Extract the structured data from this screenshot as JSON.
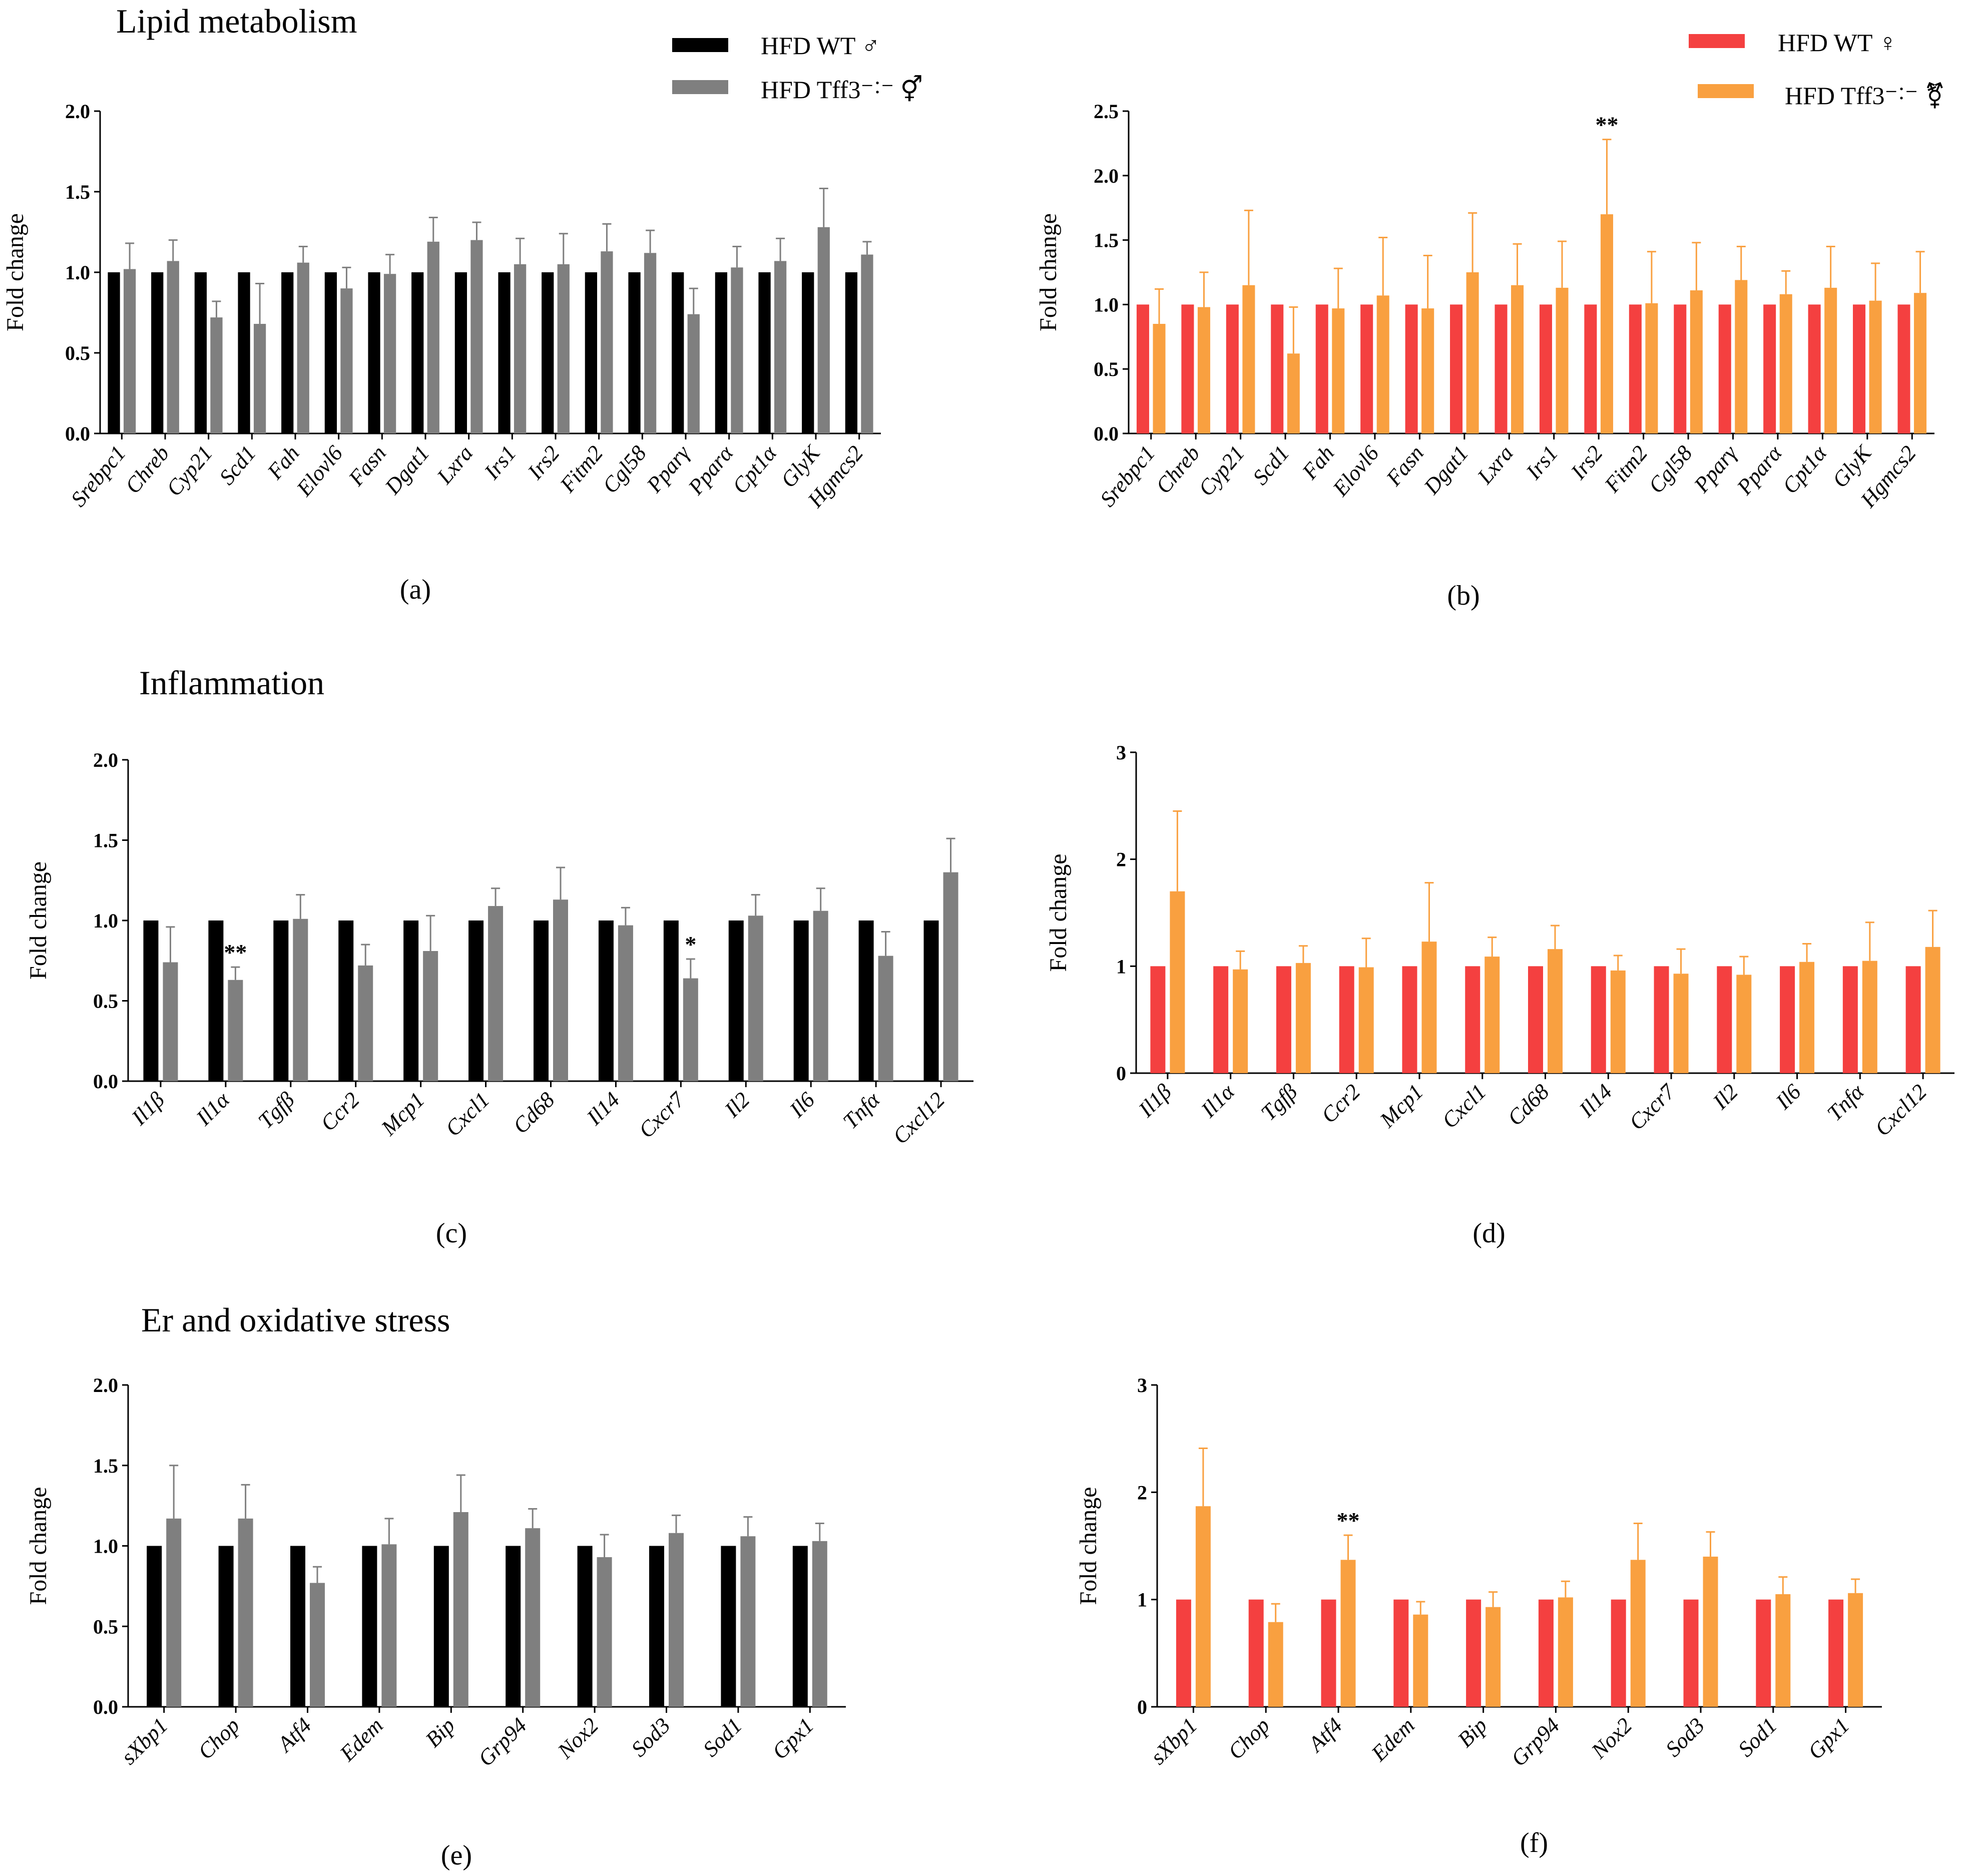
{
  "sections": {
    "lipid": "Lipid metabolism",
    "inflammation": "Inflammation",
    "er": "Er and oxidative stress"
  },
  "legend": {
    "male": [
      {
        "label": "HFD WT ♂",
        "color": "#000000"
      },
      {
        "label": "HFD Tff3⁻˸⁻ ⚥",
        "color": "#7f7f7f"
      }
    ],
    "female": [
      {
        "label": "HFD WT ♀",
        "color": "#f44040"
      },
      {
        "label": "HFD Tff3⁻˸⁻ ⚧",
        "color": "#f9a040"
      }
    ]
  },
  "colors": {
    "male_wt": "#000000",
    "male_ko": "#7f7f7f",
    "female_wt": "#f44040",
    "female_ko": "#f9a040"
  },
  "chart_data": [
    {
      "panel": "(a)",
      "type": "bar",
      "ylabel": "Fold change",
      "ylim": [
        0,
        2.0
      ],
      "yticks": [
        "0.0",
        "0.5",
        "1.0",
        "1.5",
        "2.0"
      ],
      "categories": [
        "Srebpc1",
        "Chreb",
        "Cyp21",
        "Scd1",
        "Fah",
        "Elovl6",
        "Fasn",
        "Dgat1",
        "Lxra",
        "Irs1",
        "Irs2",
        "Fitm2",
        "Cgl58",
        "Pparγ",
        "Pparα",
        "Cpt1α",
        "GlyK",
        "Hgmcs2"
      ],
      "series": [
        {
          "name": "HFD WT ♂",
          "values": [
            1,
            1,
            1,
            1,
            1,
            1,
            1,
            1,
            1,
            1,
            1,
            1,
            1,
            1,
            1,
            1,
            1,
            1
          ],
          "errors": [
            0,
            0,
            0,
            0,
            0,
            0,
            0,
            0,
            0,
            0,
            0,
            0,
            0,
            0,
            0,
            0,
            0,
            0
          ]
        },
        {
          "name": "HFD Tff3-/- ♂",
          "values": [
            1.02,
            1.07,
            0.72,
            0.68,
            1.06,
            0.9,
            0.99,
            1.19,
            1.2,
            1.05,
            1.05,
            1.13,
            1.12,
            0.74,
            1.03,
            1.07,
            1.28,
            1.11
          ],
          "errors": [
            0.16,
            0.13,
            0.1,
            0.25,
            0.1,
            0.13,
            0.12,
            0.15,
            0.11,
            0.16,
            0.19,
            0.17,
            0.14,
            0.16,
            0.13,
            0.14,
            0.24,
            0.08
          ]
        }
      ],
      "significance": []
    },
    {
      "panel": "(b)",
      "type": "bar",
      "ylabel": "Fold change",
      "ylim": [
        0,
        2.5
      ],
      "yticks": [
        "0.0",
        "0.5",
        "1.0",
        "1.5",
        "2.0",
        "2.5"
      ],
      "categories": [
        "Srebpc1",
        "Chreb",
        "Cyp21",
        "Scd1",
        "Fah",
        "Elovl6",
        "Fasn",
        "Dgat1",
        "Lxra",
        "Irs1",
        "Irs2",
        "Fitm2",
        "Cgl58",
        "Pparγ",
        "Pparα",
        "Cpt1α",
        "GlyK",
        "Hgmcs2"
      ],
      "series": [
        {
          "name": "HFD WT ♀",
          "values": [
            1,
            1,
            1,
            1,
            1,
            1,
            1,
            1,
            1,
            1,
            1,
            1,
            1,
            1,
            1,
            1,
            1,
            1
          ],
          "errors": [
            0,
            0,
            0,
            0,
            0,
            0,
            0,
            0,
            0,
            0,
            0,
            0,
            0,
            0,
            0,
            0,
            0,
            0
          ]
        },
        {
          "name": "HFD Tff3-/- ♀",
          "values": [
            0.85,
            0.98,
            1.15,
            0.62,
            0.97,
            1.07,
            0.97,
            1.25,
            1.15,
            1.13,
            1.7,
            1.01,
            1.11,
            1.19,
            1.08,
            1.13,
            1.03,
            1.09
          ],
          "errors": [
            0.27,
            0.27,
            0.58,
            0.36,
            0.31,
            0.45,
            0.41,
            0.46,
            0.32,
            0.36,
            0.58,
            0.4,
            0.37,
            0.26,
            0.18,
            0.32,
            0.29,
            0.32
          ]
        }
      ],
      "significance": [
        {
          "category": "Irs2",
          "text": "**"
        }
      ]
    },
    {
      "panel": "(c)",
      "type": "bar",
      "ylabel": "Fold change",
      "ylim": [
        0,
        2.0
      ],
      "yticks": [
        "0.0",
        "0.5",
        "1.0",
        "1.5",
        "2.0"
      ],
      "categories": [
        "Il1β",
        "Il1α",
        "Tgfβ",
        "Ccr2",
        "Mcp1",
        "Cxcl1",
        "Cd68",
        "Il14",
        "Cxcr7",
        "Il2",
        "Il6",
        "Tnfα",
        "Cxcl12"
      ],
      "series": [
        {
          "name": "HFD WT ♂",
          "values": [
            1,
            1,
            1,
            1,
            1,
            1,
            1,
            1,
            1,
            1,
            1,
            1,
            1
          ],
          "errors": [
            0,
            0,
            0,
            0,
            0,
            0,
            0,
            0,
            0,
            0,
            0,
            0,
            0
          ]
        },
        {
          "name": "HFD Tff3-/- ♂",
          "values": [
            0.74,
            0.63,
            1.01,
            0.72,
            0.81,
            1.09,
            1.13,
            0.97,
            0.64,
            1.03,
            1.06,
            0.78,
            1.3
          ],
          "errors": [
            0.22,
            0.08,
            0.15,
            0.13,
            0.22,
            0.11,
            0.2,
            0.11,
            0.12,
            0.13,
            0.14,
            0.15,
            0.21
          ]
        }
      ],
      "significance": [
        {
          "category": "Il1α",
          "text": "**"
        },
        {
          "category": "Cxcr7",
          "text": "*"
        }
      ]
    },
    {
      "panel": "(d)",
      "type": "bar",
      "ylabel": "Fold change",
      "ylim": [
        0,
        3
      ],
      "yticks": [
        "0",
        "1",
        "2",
        "3"
      ],
      "categories": [
        "Il1β",
        "Il1α",
        "Tgfβ",
        "Ccr2",
        "Mcp1",
        "Cxcl1",
        "Cd68",
        "Il14",
        "Cxcr7",
        "Il2",
        "Il6",
        "Tnfα",
        "Cxcl12"
      ],
      "series": [
        {
          "name": "HFD WT ♀",
          "values": [
            1,
            1,
            1,
            1,
            1,
            1,
            1,
            1,
            1,
            1,
            1,
            1,
            1
          ],
          "errors": [
            0,
            0,
            0,
            0,
            0,
            0,
            0,
            0,
            0,
            0,
            0,
            0,
            0
          ]
        },
        {
          "name": "HFD Tff3-/- ♀",
          "values": [
            1.7,
            0.97,
            1.03,
            0.99,
            1.23,
            1.09,
            1.16,
            0.96,
            0.93,
            0.92,
            1.04,
            1.05,
            1.18
          ],
          "errors": [
            0.75,
            0.17,
            0.16,
            0.27,
            0.55,
            0.18,
            0.22,
            0.14,
            0.23,
            0.17,
            0.17,
            0.36,
            0.34
          ]
        }
      ],
      "significance": []
    },
    {
      "panel": "(e)",
      "type": "bar",
      "ylabel": "Fold change",
      "ylim": [
        0,
        2.0
      ],
      "yticks": [
        "0.0",
        "0.5",
        "1.0",
        "1.5",
        "2.0"
      ],
      "categories": [
        "sXbp1",
        "Chop",
        "Atf4",
        "Edem",
        "Bip",
        "Grp94",
        "Nox2",
        "Sod3",
        "Sod1",
        "Gpx1"
      ],
      "series": [
        {
          "name": "HFD WT ♂",
          "values": [
            1,
            1,
            1,
            1,
            1,
            1,
            1,
            1,
            1,
            1
          ],
          "errors": [
            0,
            0,
            0,
            0,
            0,
            0,
            0,
            0,
            0,
            0
          ]
        },
        {
          "name": "HFD Tff3-/- ♂",
          "values": [
            1.17,
            1.17,
            0.77,
            1.01,
            1.21,
            1.11,
            0.93,
            1.08,
            1.06,
            1.03
          ],
          "errors": [
            0.33,
            0.21,
            0.1,
            0.16,
            0.23,
            0.12,
            0.14,
            0.11,
            0.12,
            0.11
          ]
        }
      ],
      "significance": []
    },
    {
      "panel": "(f)",
      "type": "bar",
      "ylabel": "Fold change",
      "ylim": [
        0,
        3
      ],
      "yticks": [
        "0",
        "1",
        "2",
        "3"
      ],
      "categories": [
        "sXbp1",
        "Chop",
        "Atf4",
        "Edem",
        "Bip",
        "Grp94",
        "Nox2",
        "Sod3",
        "Sod1",
        "Gpx1"
      ],
      "series": [
        {
          "name": "HFD WT ♀",
          "values": [
            1,
            1,
            1,
            1,
            1,
            1,
            1,
            1,
            1,
            1
          ],
          "errors": [
            0,
            0,
            0,
            0,
            0,
            0,
            0,
            0,
            0,
            0
          ]
        },
        {
          "name": "HFD Tff3-/- ♀",
          "values": [
            1.87,
            0.79,
            1.37,
            0.86,
            0.93,
            1.02,
            1.37,
            1.4,
            1.05,
            1.06
          ],
          "errors": [
            0.54,
            0.17,
            0.23,
            0.12,
            0.14,
            0.15,
            0.34,
            0.23,
            0.16,
            0.13
          ]
        }
      ],
      "significance": [
        {
          "category": "Atf4",
          "text": "**"
        }
      ]
    }
  ]
}
